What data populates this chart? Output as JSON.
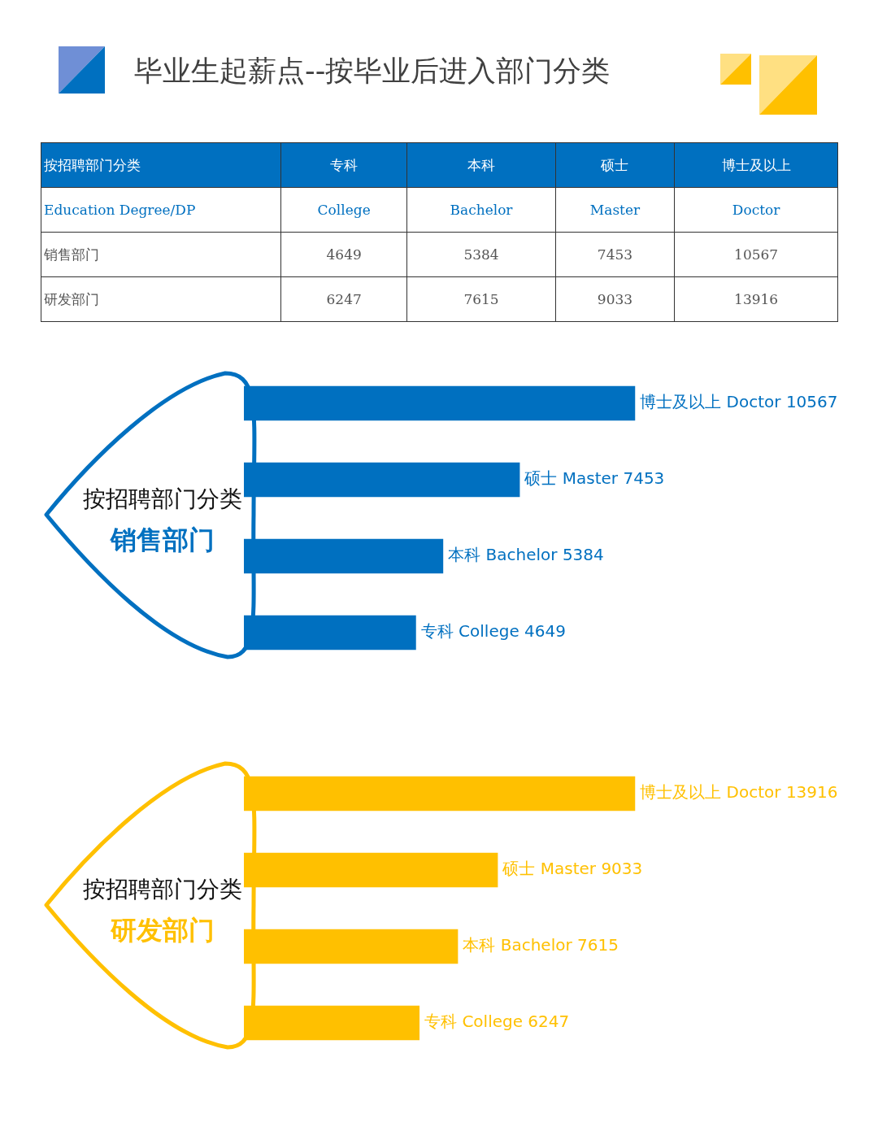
{
  "chart_data": [
    {
      "type": "other",
      "title": "毕业生起薪点--按毕业后进入部门分类",
      "ylabel": "按招聘部门分类",
      "categories": [
        "专科",
        "本科",
        "硕士",
        "博士及以上"
      ],
      "annotations": [
        "Education Degree/DP",
        "College",
        "Bachelor",
        "Master",
        "Doctor"
      ],
      "data_labels": true,
      "series": [
        {
          "name": "销售部门",
          "values": [
            4649,
            5384,
            7453,
            10567
          ]
        },
        {
          "name": "研发部门",
          "values": [
            6247,
            7615,
            9033,
            13916
          ]
        }
      ]
    },
    {
      "type": "bar",
      "orientation": "horizontal",
      "ylabel": "按招聘部门分类",
      "title": "销售部门",
      "color": "#0070c0",
      "tick_labels": false,
      "categories": [
        null,
        null,
        null,
        null
      ],
      "values": [
        10567,
        7453,
        5384,
        4649
      ],
      "value_labels": [
        "博士及以上 Doctor 10567",
        "硕士 Master 7453",
        "本科 Bachelor 5384",
        "专科 College 4649"
      ]
    },
    {
      "type": "bar",
      "orientation": "horizontal",
      "ylabel": "按招聘部门分类",
      "title": "研发部门",
      "color": "#ffc000",
      "tick_labels": false,
      "categories": [
        null,
        null,
        null,
        null
      ],
      "values": [
        13916,
        9033,
        7615,
        6247
      ],
      "value_labels": [
        "博士及以上 Doctor 13916",
        "硕士 Master 9033",
        "本科 Bachelor 7615",
        "专科 College 6247"
      ]
    }
  ]
}
